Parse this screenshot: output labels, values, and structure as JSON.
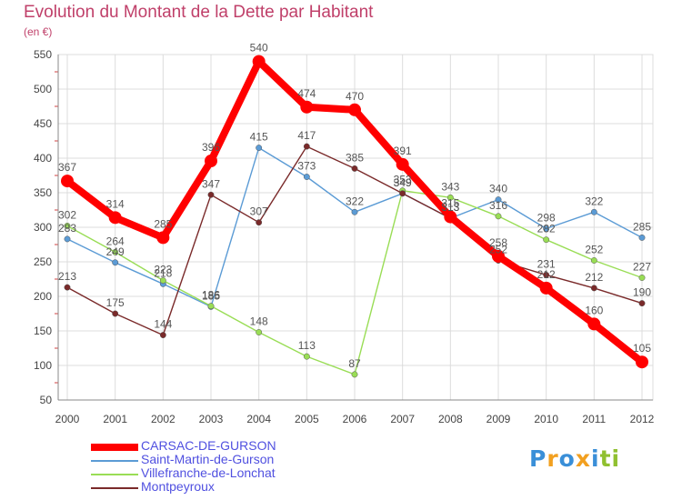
{
  "chart_data": {
    "type": "line",
    "title": "Evolution du Montant de la Dette par Habitant",
    "ylabel": "(en €)",
    "xlabel": "",
    "categories": [
      "2000",
      "2001",
      "2002",
      "2003",
      "2004",
      "2005",
      "2006",
      "2007",
      "2008",
      "2009",
      "2010",
      "2011",
      "2012"
    ],
    "ylim": [
      50,
      550
    ],
    "yticks": [
      50,
      100,
      150,
      200,
      250,
      300,
      350,
      400,
      450,
      500,
      550
    ],
    "grid": true,
    "legend_position": "bottom-left",
    "series": [
      {
        "name": "CARSAC-DE-GURSON",
        "color": "#ff0000",
        "width": 8,
        "values": [
          367,
          314,
          285,
          396,
          540,
          474,
          470,
          391,
          315,
          258,
          212,
          160,
          105
        ]
      },
      {
        "name": "Saint-Martin-de-Gurson",
        "color": "#5b9bd5",
        "width": 1.4,
        "values": [
          283,
          249,
          218,
          185,
          415,
          373,
          322,
          349,
          313,
          340,
          298,
          322,
          285
        ]
      },
      {
        "name": "Villefranche-de-Lonchat",
        "color": "#99dd55",
        "width": 1.4,
        "values": [
          302,
          264,
          223,
          186,
          148,
          113,
          87,
          353,
          343,
          316,
          282,
          252,
          227
        ]
      },
      {
        "name": "Montpeyroux",
        "color": "#7a2a2a",
        "width": 1.4,
        "values": [
          213,
          175,
          144,
          347,
          307,
          417,
          385,
          349,
          313,
          252,
          231,
          212,
          190
        ]
      }
    ]
  },
  "brand": {
    "letters": [
      "P",
      "r",
      "o",
      "x",
      "i",
      "t",
      "i"
    ],
    "colors": [
      "#3a8fd8",
      "#f2a020",
      "#3a8fd8",
      "#f2a020",
      "#3a8fd8",
      "#90c030",
      "#90c030"
    ]
  }
}
